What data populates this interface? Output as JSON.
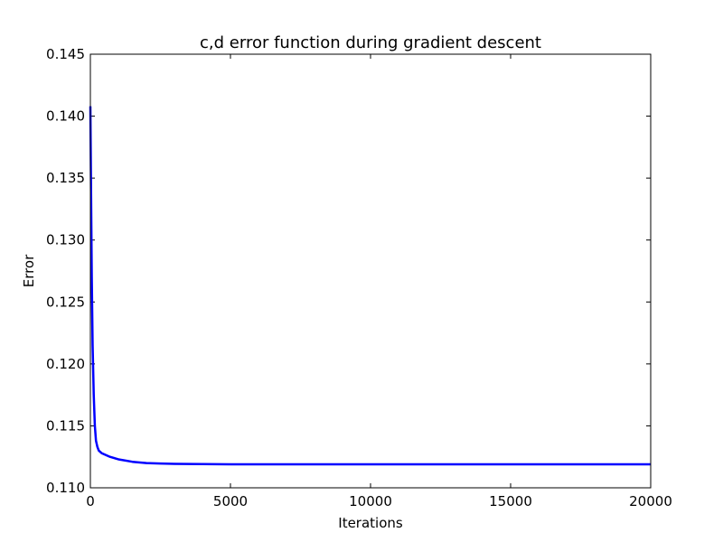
{
  "chart_data": {
    "type": "line",
    "title": "c,d error function during gradient descent",
    "xlabel": "Iterations",
    "ylabel": "Error",
    "xlim": [
      0,
      20000
    ],
    "ylim": [
      0.11,
      0.145
    ],
    "xticks": [
      0,
      5000,
      10000,
      15000,
      20000
    ],
    "xtick_labels": [
      "0",
      "5000",
      "10000",
      "15000",
      "20000"
    ],
    "yticks": [
      0.11,
      0.115,
      0.12,
      0.125,
      0.13,
      0.135,
      0.14,
      0.145
    ],
    "ytick_labels": [
      "0.110",
      "0.115",
      "0.120",
      "0.125",
      "0.130",
      "0.135",
      "0.140",
      "0.145"
    ],
    "grid": false,
    "series": [
      {
        "color": "#0000ff",
        "x": [
          0,
          20,
          50,
          80,
          120,
          160,
          200,
          250,
          300,
          400,
          500,
          700,
          1000,
          1500,
          2000,
          2500,
          3000,
          4000,
          5000,
          7000,
          10000,
          15000,
          20000
        ],
        "y": [
          0.1408,
          0.135,
          0.127,
          0.1215,
          0.1175,
          0.115,
          0.1138,
          0.1133,
          0.113,
          0.1128,
          0.1127,
          0.1125,
          0.1123,
          0.1121,
          0.112,
          0.11196,
          0.11193,
          0.11191,
          0.1119,
          0.1119,
          0.1119,
          0.1119,
          0.1119
        ]
      }
    ]
  }
}
